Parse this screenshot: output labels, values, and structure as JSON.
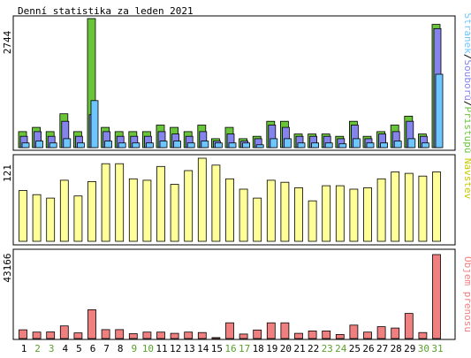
{
  "title": "Denní statistika za leden 2021",
  "colors": {
    "hits": "#6ac43a",
    "files": "#8484ec",
    "pages": "#6ec6ff",
    "visits": "#ffff99",
    "kbytes": "#f08080",
    "weekday_label": "#000000",
    "weekend_label": "#5aa02c",
    "border": "#000000"
  },
  "legend": {
    "pages": "Stránek",
    "files": "Souborů",
    "hits": "Přístupů",
    "sep": "/",
    "visits": "Návštěv",
    "kbytes": "Objem přenosu"
  },
  "chart_data": [
    {
      "type": "bar",
      "name": "hits-files-pages",
      "categories": [
        "1",
        "2",
        "3",
        "4",
        "5",
        "6",
        "7",
        "8",
        "9",
        "10",
        "11",
        "12",
        "13",
        "14",
        "15",
        "16",
        "17",
        "18",
        "19",
        "20",
        "21",
        "22",
        "23",
        "24",
        "25",
        "26",
        "27",
        "28",
        "29",
        "30",
        "31"
      ],
      "ymax_label": "2744",
      "ylim": [
        0,
        2744
      ],
      "series": [
        {
          "name": "Přístupů",
          "values": [
            340,
            430,
            340,
            720,
            340,
            2744,
            430,
            340,
            340,
            340,
            480,
            430,
            340,
            480,
            190,
            430,
            190,
            240,
            560,
            560,
            290,
            290,
            290,
            240,
            560,
            240,
            340,
            480,
            670,
            290,
            2620
          ]
        },
        {
          "name": "Souborů",
          "values": [
            240,
            340,
            240,
            560,
            240,
            700,
            340,
            240,
            240,
            240,
            340,
            290,
            240,
            340,
            140,
            290,
            140,
            190,
            480,
            430,
            240,
            240,
            240,
            190,
            480,
            190,
            290,
            340,
            560,
            240,
            2530
          ]
        },
        {
          "name": "Stránek",
          "values": [
            100,
            140,
            100,
            190,
            100,
            1000,
            140,
            100,
            100,
            100,
            140,
            140,
            100,
            140,
            100,
            100,
            100,
            60,
            190,
            190,
            100,
            100,
            100,
            80,
            190,
            100,
            100,
            140,
            190,
            100,
            1560
          ]
        }
      ]
    },
    {
      "type": "bar",
      "name": "visits",
      "categories": [
        "1",
        "2",
        "3",
        "4",
        "5",
        "6",
        "7",
        "8",
        "9",
        "10",
        "11",
        "12",
        "13",
        "14",
        "15",
        "16",
        "17",
        "18",
        "19",
        "20",
        "21",
        "22",
        "23",
        "24",
        "25",
        "26",
        "27",
        "28",
        "29",
        "30",
        "31"
      ],
      "ymax_label": "121",
      "ylim": [
        0,
        121
      ],
      "series": [
        {
          "name": "Návštěv",
          "values": [
            74,
            68,
            63,
            89,
            66,
            87,
            113,
            113,
            91,
            89,
            109,
            83,
            103,
            121,
            111,
            91,
            76,
            63,
            89,
            86,
            78,
            59,
            81,
            81,
            76,
            78,
            91,
            101,
            99,
            95,
            101
          ]
        }
      ]
    },
    {
      "type": "bar",
      "name": "kbytes",
      "categories": [
        "1",
        "2",
        "3",
        "4",
        "5",
        "6",
        "7",
        "8",
        "9",
        "10",
        "11",
        "12",
        "13",
        "14",
        "15",
        "16",
        "17",
        "18",
        "19",
        "20",
        "21",
        "22",
        "23",
        "24",
        "25",
        "26",
        "27",
        "28",
        "29",
        "30",
        "31"
      ],
      "ymax_label": "43166",
      "ylim": [
        0,
        43166
      ],
      "series": [
        {
          "name": "Objem přenosu",
          "values": [
            4500,
            3300,
            3400,
            6500,
            2900,
            14800,
            4600,
            4600,
            2500,
            3300,
            3300,
            2700,
            3300,
            3100,
            500,
            8100,
            2300,
            4400,
            8100,
            8100,
            2700,
            3900,
            3900,
            2100,
            6900,
            3300,
            6100,
            5400,
            12900,
            3100,
            43166
          ]
        }
      ]
    }
  ]
}
